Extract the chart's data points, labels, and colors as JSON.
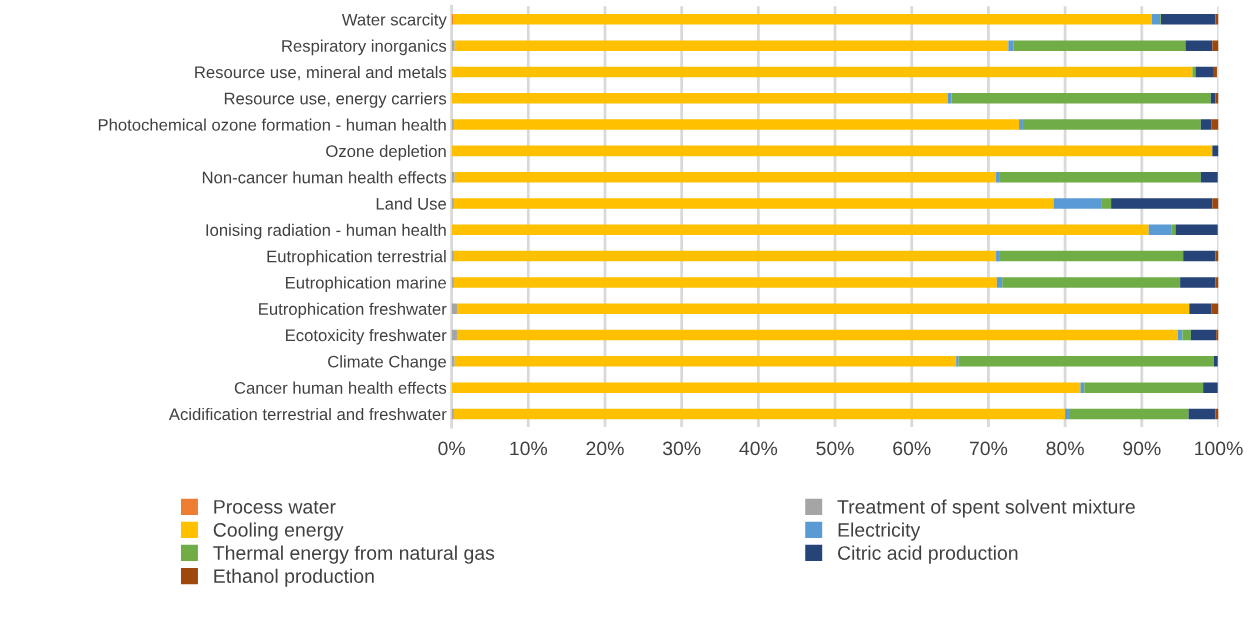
{
  "chart_data": {
    "type": "bar",
    "orientation": "horizontal",
    "stacked": true,
    "categories": [
      "Water scarcity",
      "Respiratory inorganics",
      "Resource use, mineral and metals",
      "Resource use, energy carriers",
      "Photochemical ozone formation - human health",
      "Ozone depletion",
      "Non-cancer human health effects",
      "Land Use",
      "Ionising radiation - human health",
      "Eutrophication terrestrial",
      "Eutrophication marine",
      "Eutrophication freshwater",
      "Ecotoxicity freshwater",
      "Climate Change",
      "Cancer human health effects",
      "Acidification terrestrial and freshwater"
    ],
    "series": [
      {
        "name": "Process water",
        "color": "#ed7d31",
        "values": [
          0.2,
          0,
          0,
          0,
          0,
          0,
          0,
          0,
          0,
          0,
          0,
          0,
          0,
          0,
          0,
          0
        ]
      },
      {
        "name": "Treatment of spent solvent mixture",
        "color": "#a5a5a5",
        "values": [
          0,
          0.4,
          null,
          0,
          0.3,
          0,
          0.4,
          0.3,
          0,
          0.3,
          0.3,
          0.7,
          0.7,
          0.4,
          0,
          0.3
        ]
      },
      {
        "name": "Cooling energy",
        "color": "#ffc000",
        "values": [
          91.1,
          72.2,
          96.6,
          64.7,
          73.7,
          99.2,
          70.6,
          78.2,
          90.9,
          70.7,
          70.8,
          95.5,
          94.0,
          65.4,
          82.0,
          79.7
        ]
      },
      {
        "name": "Electricity",
        "color": "#5b9bd5",
        "values": [
          1.1,
          0.7,
          0,
          0.5,
          0.5,
          0,
          0.5,
          6.2,
          3.0,
          0.5,
          0.7,
          0,
          0.6,
          0.3,
          0.5,
          0.5
        ]
      },
      {
        "name": "Thermal energy from natural gas",
        "color": "#70ad47",
        "values": [
          0.1,
          22.4,
          0.4,
          33.8,
          23.2,
          0,
          26.2,
          1.3,
          0.5,
          23.9,
          23.2,
          0,
          1.1,
          33.3,
          15.5,
          15.6
        ]
      },
      {
        "name": "Citric acid production",
        "color": "#264478",
        "values": [
          7.1,
          3.5,
          2.4,
          0.6,
          1.4,
          0.8,
          2.2,
          13.2,
          5.5,
          4.2,
          4.6,
          2.9,
          3.3,
          0.5,
          1.9,
          3.5
        ]
      },
      {
        "name": "Ethanol production",
        "color": "#9e480e",
        "values": [
          0.4,
          0.8,
          0.4,
          0.4,
          0.9,
          0,
          null,
          0.8,
          null,
          0.4,
          0.4,
          0.9,
          0.3,
          null,
          null,
          0.4
        ]
      }
    ],
    "xlim": [
      0,
      100
    ],
    "xticks": [
      {
        "value": 0,
        "label": "0%"
      },
      {
        "value": 10,
        "label": "10%"
      },
      {
        "value": 20,
        "label": "20%"
      },
      {
        "value": 30,
        "label": "30%"
      },
      {
        "value": 40,
        "label": "40%"
      },
      {
        "value": 50,
        "label": "50%"
      },
      {
        "value": 60,
        "label": "60%"
      },
      {
        "value": 70,
        "label": "70%"
      },
      {
        "value": 80,
        "label": "80%"
      },
      {
        "value": 90,
        "label": "90%"
      },
      {
        "value": 100,
        "label": "100%"
      }
    ],
    "grid": "x",
    "legend": "bottom"
  }
}
